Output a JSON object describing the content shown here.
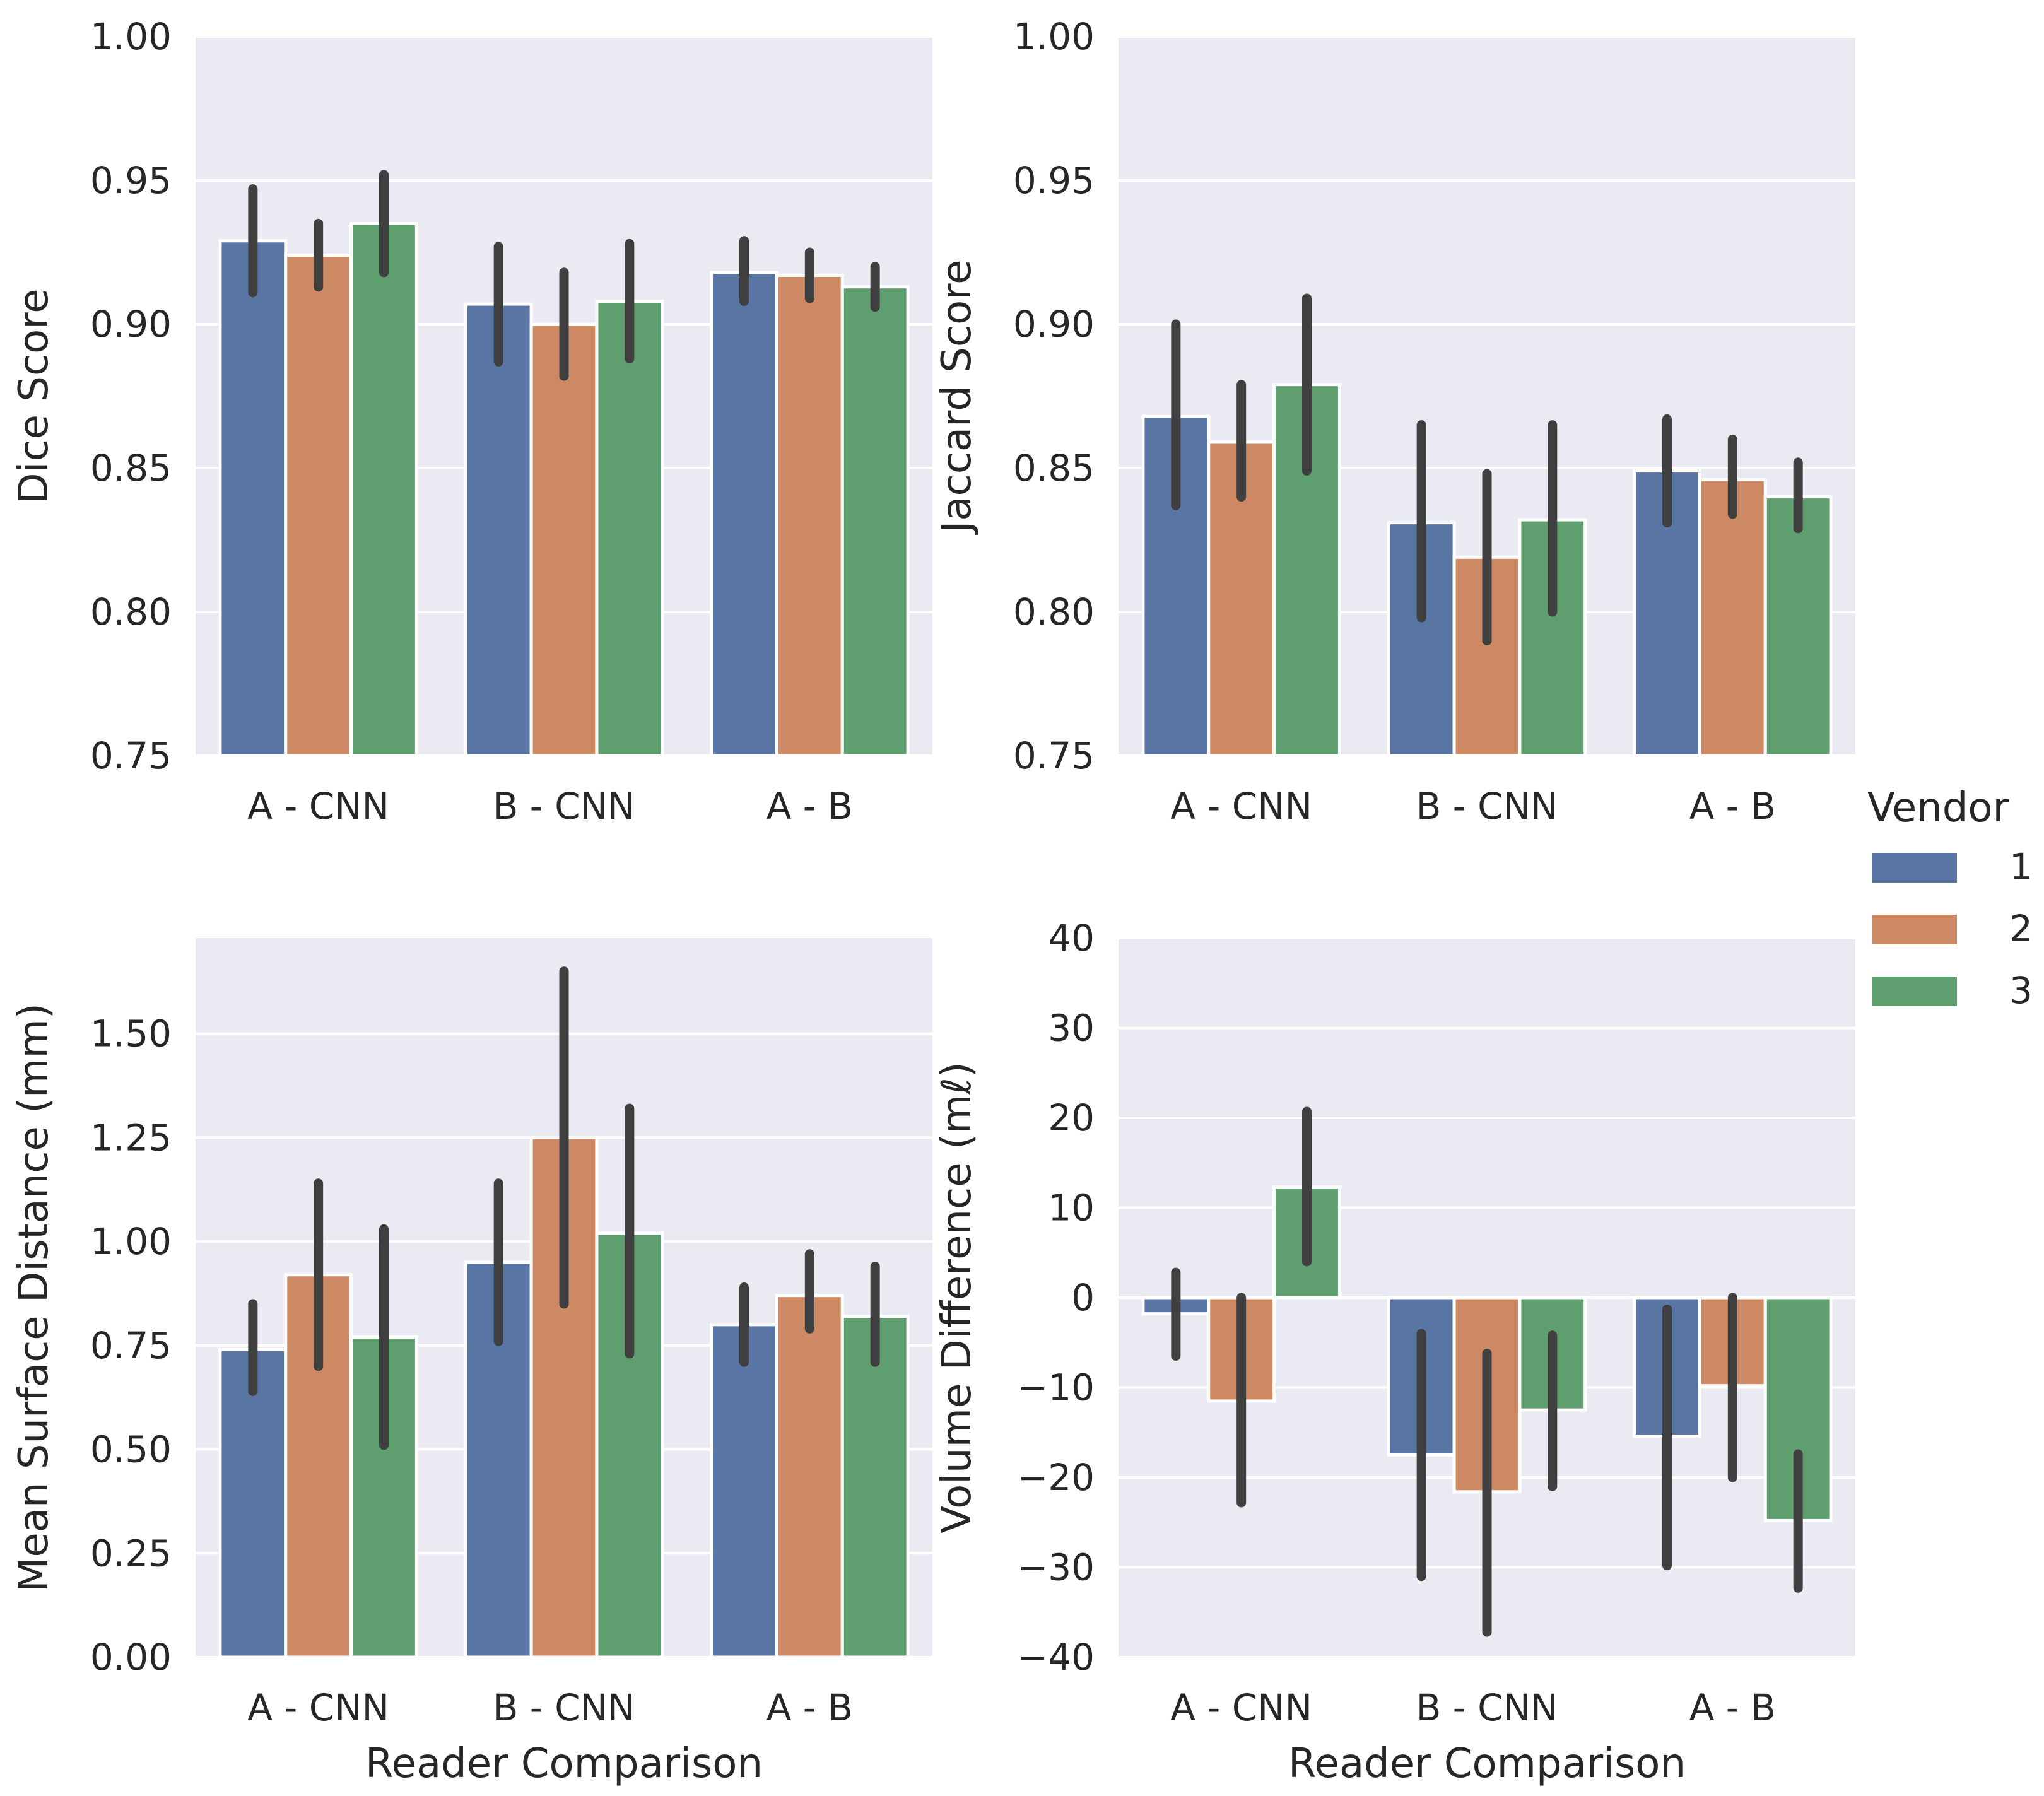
{
  "legend": {
    "title": "Vendor",
    "entries": [
      "1",
      "2",
      "3"
    ],
    "colors": [
      "#5875a4",
      "#cc8963",
      "#5f9e6e"
    ],
    "placement": "right"
  },
  "chart_data": [
    {
      "type": "bar",
      "panel": "top-left",
      "ylabel": "Dice Score",
      "xlabel": "",
      "categories": [
        "A - CNN",
        "B - CNN",
        "A - B"
      ],
      "ylim": [
        0.75,
        1.0
      ],
      "yticks": [
        0.75,
        0.8,
        0.85,
        0.9,
        0.95,
        1.0
      ],
      "ytick_labels": [
        "0.75",
        "0.80",
        "0.85",
        "0.90",
        "0.95",
        "1.00"
      ],
      "series": [
        {
          "name": "1",
          "values": [
            0.929,
            0.907,
            0.918
          ],
          "ci": [
            [
              0.911,
              0.947
            ],
            [
              0.887,
              0.927
            ],
            [
              0.908,
              0.929
            ]
          ]
        },
        {
          "name": "2",
          "values": [
            0.924,
            0.9,
            0.917
          ],
          "ci": [
            [
              0.913,
              0.935
            ],
            [
              0.882,
              0.918
            ],
            [
              0.909,
              0.925
            ]
          ]
        },
        {
          "name": "3",
          "values": [
            0.935,
            0.908,
            0.913
          ],
          "ci": [
            [
              0.918,
              0.952
            ],
            [
              0.888,
              0.928
            ],
            [
              0.906,
              0.92
            ]
          ]
        }
      ]
    },
    {
      "type": "bar",
      "panel": "top-right",
      "ylabel": "Jaccard Score",
      "xlabel": "",
      "categories": [
        "A - CNN",
        "B - CNN",
        "A - B"
      ],
      "ylim": [
        0.75,
        1.0
      ],
      "yticks": [
        0.75,
        0.8,
        0.85,
        0.9,
        0.95,
        1.0
      ],
      "ytick_labels": [
        "0.75",
        "0.80",
        "0.85",
        "0.90",
        "0.95",
        "1.00"
      ],
      "series": [
        {
          "name": "1",
          "values": [
            0.868,
            0.831,
            0.849
          ],
          "ci": [
            [
              0.837,
              0.9
            ],
            [
              0.798,
              0.865
            ],
            [
              0.831,
              0.867
            ]
          ]
        },
        {
          "name": "2",
          "values": [
            0.859,
            0.819,
            0.846
          ],
          "ci": [
            [
              0.84,
              0.879
            ],
            [
              0.79,
              0.848
            ],
            [
              0.834,
              0.86
            ]
          ]
        },
        {
          "name": "3",
          "values": [
            0.879,
            0.832,
            0.84
          ],
          "ci": [
            [
              0.849,
              0.909
            ],
            [
              0.8,
              0.865
            ],
            [
              0.829,
              0.852
            ]
          ]
        }
      ]
    },
    {
      "type": "bar",
      "panel": "bottom-left",
      "ylabel": "Mean Surface Distance (mm)",
      "xlabel": "Reader Comparison",
      "categories": [
        "A - CNN",
        "B - CNN",
        "A - B"
      ],
      "ylim": [
        0.0,
        1.73
      ],
      "yticks": [
        0,
        0.25,
        0.5,
        0.75,
        1.0,
        1.25,
        1.5
      ],
      "ytick_labels": [
        "0.00",
        "0.25",
        "0.50",
        "0.75",
        "1.00",
        "1.25",
        "1.50"
      ],
      "series": [
        {
          "name": "1",
          "values": [
            0.74,
            0.95,
            0.8
          ],
          "ci": [
            [
              0.64,
              0.85
            ],
            [
              0.76,
              1.14
            ],
            [
              0.71,
              0.89
            ]
          ]
        },
        {
          "name": "2",
          "values": [
            0.92,
            1.25,
            0.87
          ],
          "ci": [
            [
              0.7,
              1.14
            ],
            [
              0.85,
              1.65
            ],
            [
              0.79,
              0.97
            ]
          ]
        },
        {
          "name": "3",
          "values": [
            0.77,
            1.02,
            0.82
          ],
          "ci": [
            [
              0.51,
              1.03
            ],
            [
              0.73,
              1.32
            ],
            [
              0.71,
              0.94
            ]
          ]
        }
      ]
    },
    {
      "type": "bar",
      "panel": "bottom-right",
      "ylabel": "Volume Difference (mℓ)",
      "xlabel": "Reader Comparison",
      "categories": [
        "A - CNN",
        "B - CNN",
        "A - B"
      ],
      "ylim": [
        -40,
        40
      ],
      "yticks": [
        -40,
        -30,
        -20,
        -10,
        0,
        10,
        20,
        30,
        40
      ],
      "ytick_labels": [
        "−40",
        "−30",
        "−20",
        "−10",
        "0",
        "10",
        "20",
        "30",
        "40"
      ],
      "series": [
        {
          "name": "1",
          "values": [
            -1.8,
            -17.5,
            -15.4
          ],
          "ci": [
            [
              -6.5,
              2.8
            ],
            [
              -31.0,
              -4.0
            ],
            [
              -29.8,
              -1.3
            ]
          ]
        },
        {
          "name": "2",
          "values": [
            -11.5,
            -21.6,
            -9.8
          ],
          "ci": [
            [
              -22.8,
              0.0
            ],
            [
              -37.2,
              -6.2
            ],
            [
              -20.0,
              0.0
            ]
          ]
        },
        {
          "name": "3",
          "values": [
            12.3,
            -12.5,
            -24.8
          ],
          "ci": [
            [
              4.0,
              20.7
            ],
            [
              -21.0,
              -4.2
            ],
            [
              -32.3,
              -17.4
            ]
          ]
        }
      ]
    }
  ]
}
